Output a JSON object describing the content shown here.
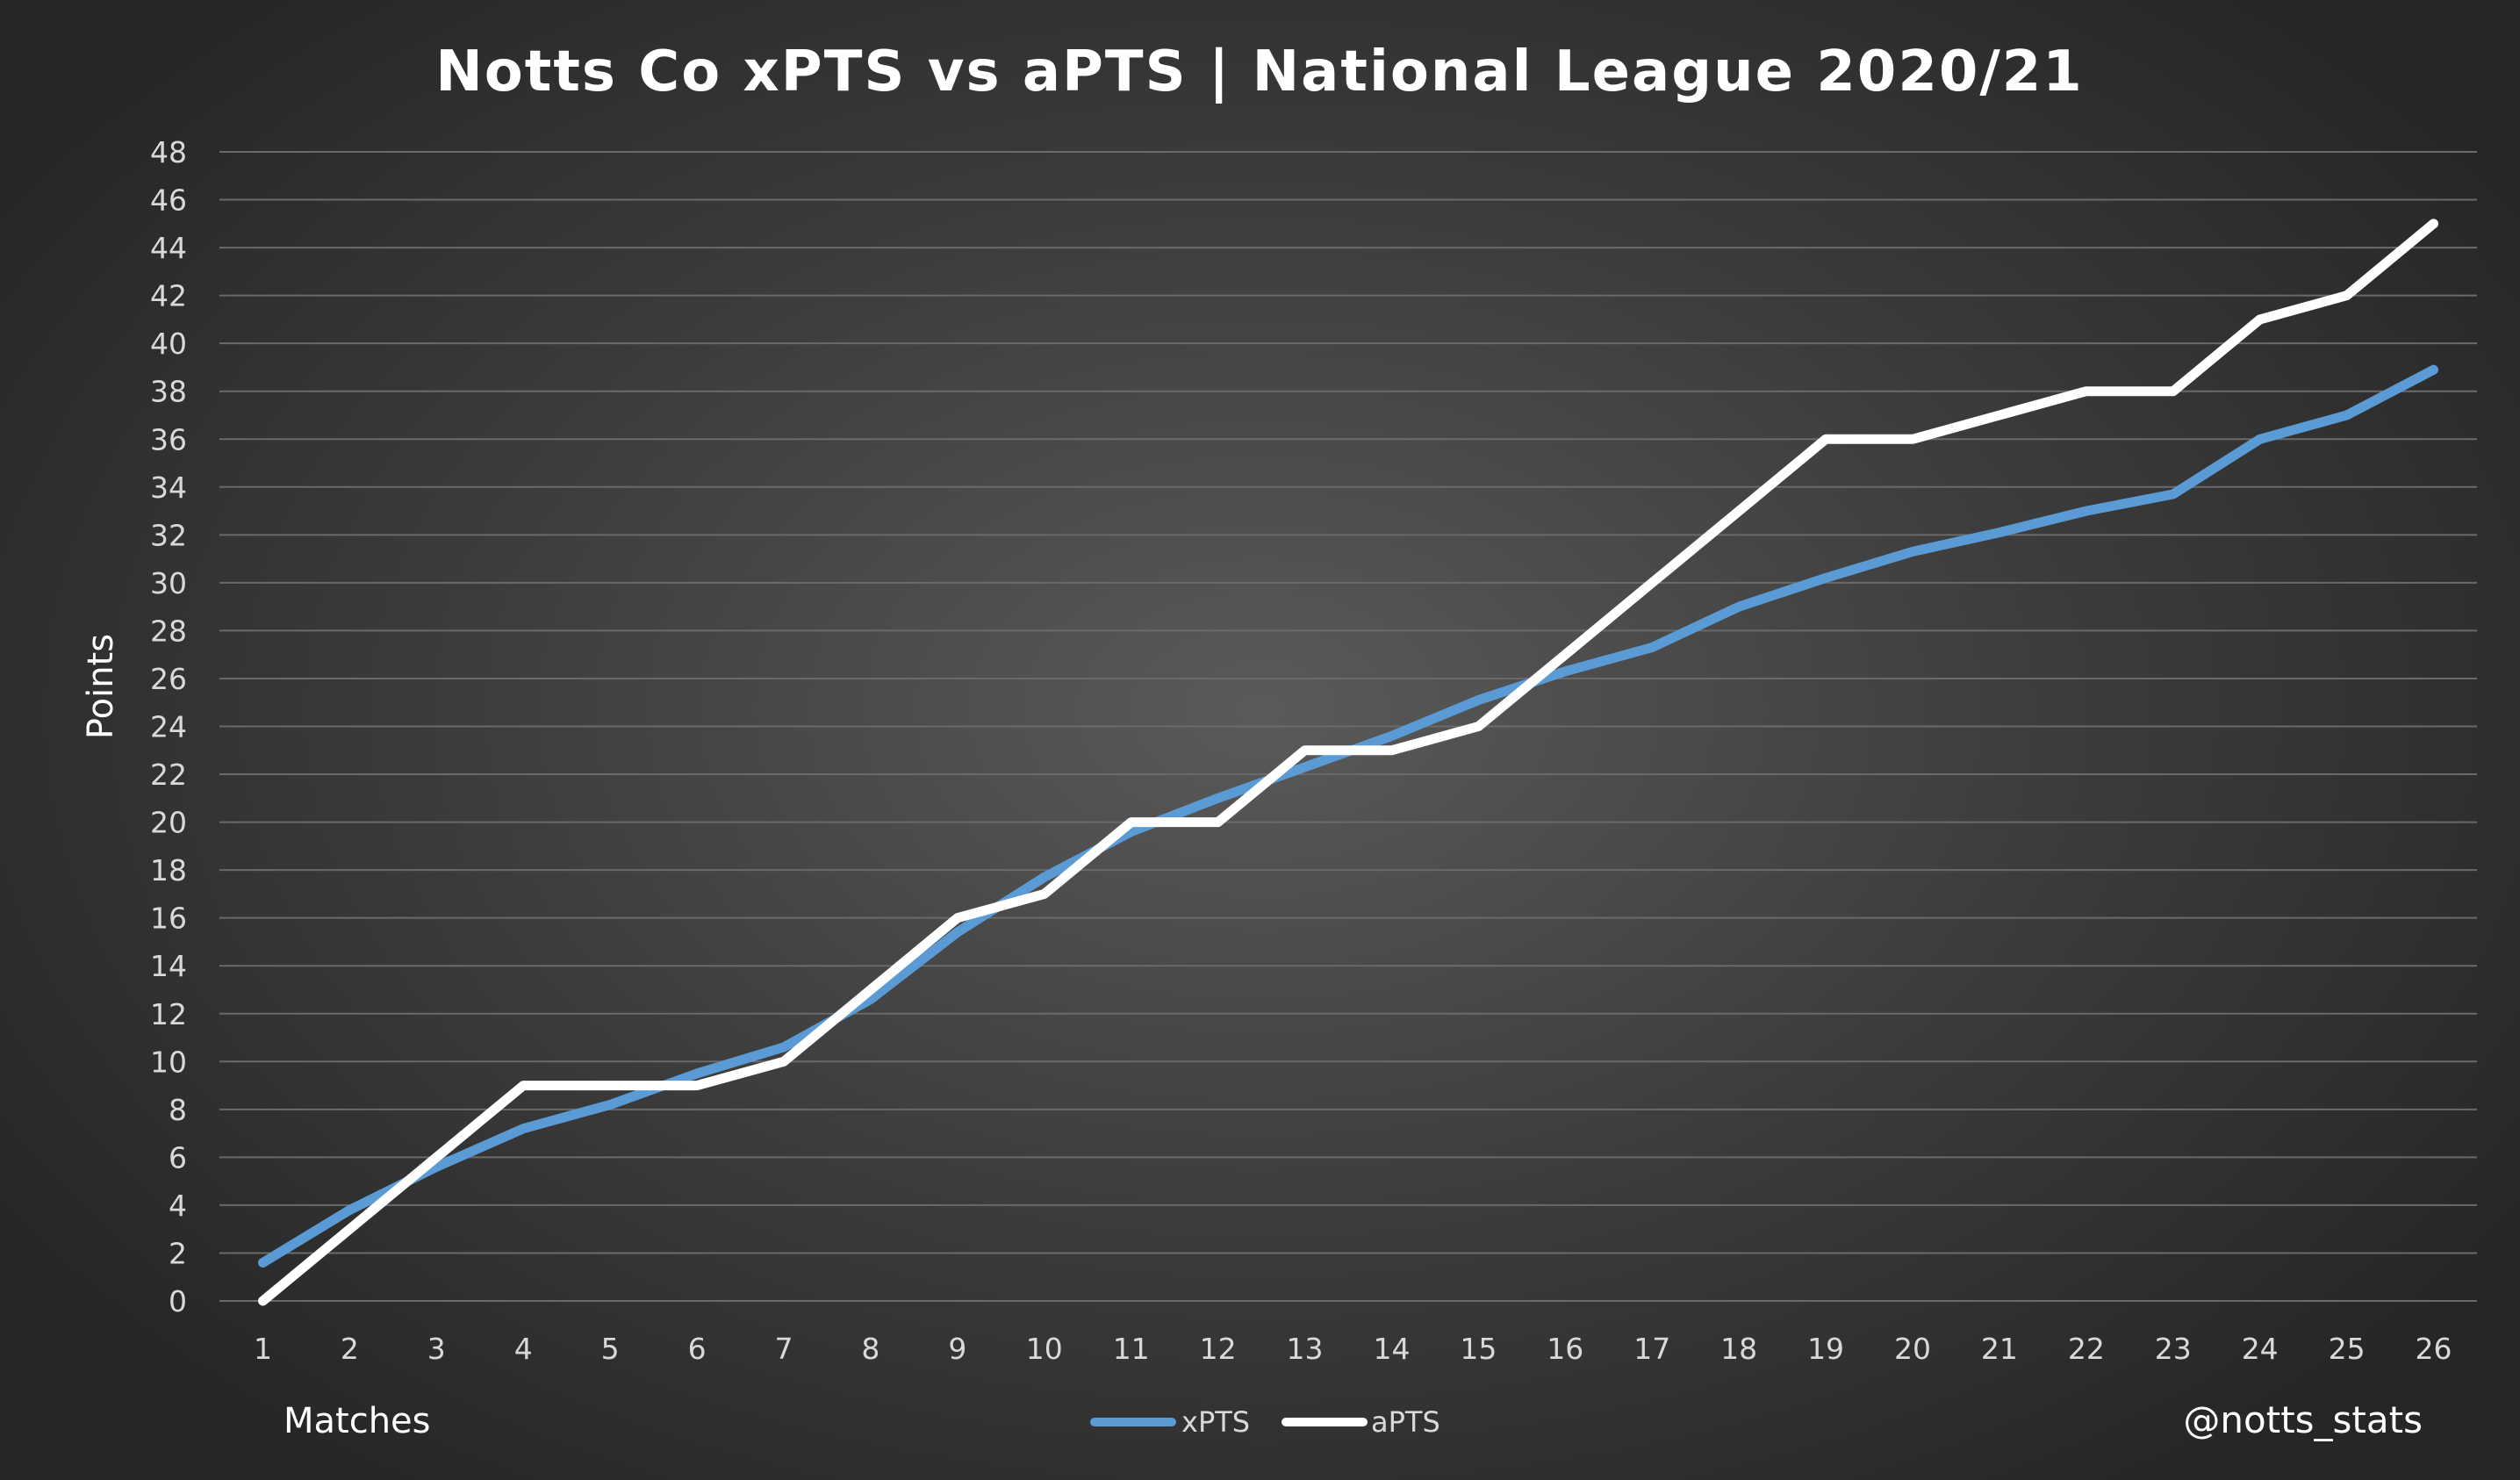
{
  "chart_data": {
    "type": "line",
    "title": "Notts Co xPTS vs aPTS | National League 2020/21",
    "xlabel": "Matches",
    "ylabel": "Points",
    "credit": "@notts_stats",
    "ylim": [
      0,
      48
    ],
    "y_ticks": [
      0,
      2,
      4,
      6,
      8,
      10,
      12,
      14,
      16,
      18,
      20,
      22,
      24,
      26,
      28,
      30,
      32,
      34,
      36,
      38,
      40,
      42,
      44,
      46,
      48
    ],
    "x": [
      1,
      2,
      3,
      4,
      5,
      6,
      7,
      8,
      9,
      10,
      11,
      12,
      13,
      14,
      15,
      16,
      17,
      18,
      19,
      20,
      21,
      22,
      23,
      24,
      25,
      26
    ],
    "grid": true,
    "legend_position": "bottom",
    "series": [
      {
        "name": "xPTS",
        "color": "#5b9bd5",
        "values": [
          1.6,
          3.8,
          5.6,
          7.2,
          8.2,
          9.5,
          10.6,
          12.6,
          15.4,
          17.7,
          19.6,
          21.0,
          22.3,
          23.6,
          25.1,
          26.3,
          27.3,
          29.0,
          30.2,
          31.3,
          32.1,
          33.0,
          33.7,
          36.0,
          37.0,
          38.9
        ]
      },
      {
        "name": "aPTS",
        "color": "#ffffff",
        "values": [
          0,
          3,
          6,
          9,
          9,
          9,
          10,
          13,
          16,
          17,
          20,
          20,
          23,
          23,
          24,
          27,
          30,
          33,
          36,
          36,
          37,
          38,
          38,
          41,
          42,
          45
        ]
      }
    ]
  }
}
